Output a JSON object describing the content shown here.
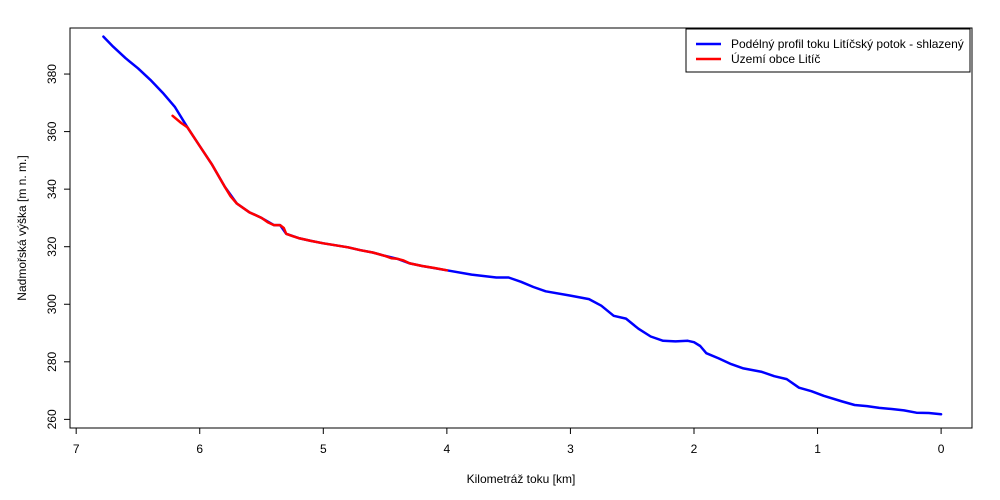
{
  "chart_data": {
    "type": "line",
    "title": "",
    "xlabel": "Kilometráž toku [km]",
    "ylabel": "Nadmořská výška [m n. m.]",
    "xlim": [
      7.05,
      -0.25
    ],
    "x_reversed": true,
    "ylim": [
      257,
      396
    ],
    "x_ticks": [
      7,
      6,
      5,
      4,
      3,
      2,
      1,
      0
    ],
    "y_ticks": [
      260,
      280,
      300,
      320,
      340,
      360,
      380
    ],
    "grid": false,
    "legend_position": "top-right",
    "series": [
      {
        "name": "Podélný profil toku Litíčský potok - shlazený",
        "color": "#0000ff",
        "x": [
          6.78,
          6.7,
          6.6,
          6.5,
          6.4,
          6.3,
          6.2,
          6.1,
          6.0,
          5.9,
          5.8,
          5.7,
          5.6,
          5.5,
          5.4,
          5.35,
          5.3,
          5.2,
          5.1,
          5.0,
          4.9,
          4.8,
          4.7,
          4.6,
          4.5,
          4.4,
          4.3,
          4.2,
          4.0,
          3.8,
          3.6,
          3.5,
          3.4,
          3.3,
          3.2,
          3.0,
          2.85,
          2.75,
          2.65,
          2.55,
          2.45,
          2.35,
          2.25,
          2.15,
          2.05,
          2.0,
          1.95,
          1.9,
          1.8,
          1.7,
          1.6,
          1.45,
          1.35,
          1.25,
          1.15,
          1.05,
          0.95,
          0.8,
          0.7,
          0.6,
          0.5,
          0.4,
          0.3,
          0.2,
          0.1,
          0.0
        ],
        "y": [
          393,
          389.5,
          385.5,
          382,
          378,
          373.5,
          368.5,
          361.5,
          355,
          348.5,
          341,
          335,
          332,
          330,
          327.5,
          327.5,
          324.5,
          323,
          322,
          321.2,
          320.5,
          319.8,
          318.8,
          318,
          316.8,
          315.8,
          314.2,
          313.3,
          311.8,
          310.3,
          309.3,
          309.3,
          307.8,
          306,
          304.5,
          303,
          301.8,
          299.5,
          296,
          295,
          291.5,
          288.8,
          287.3,
          287.1,
          287.3,
          286.8,
          285.5,
          283,
          281.2,
          279.2,
          277.7,
          276.5,
          275,
          274,
          271,
          269.8,
          268.2,
          266.2,
          265,
          264.6,
          264,
          263.6,
          263.1,
          262.3,
          262.2,
          261.8
        ]
      },
      {
        "name": "Území obce Litíč",
        "color": "#ff0000",
        "x": [
          6.22,
          6.15,
          6.1,
          6.0,
          5.9,
          5.8,
          5.75,
          5.7,
          5.6,
          5.5,
          5.45,
          5.4,
          5.35,
          5.32,
          5.3,
          5.25,
          5.2,
          5.1,
          5.0,
          4.9,
          4.8,
          4.7,
          4.6,
          4.5,
          4.45,
          4.4,
          4.35,
          4.3,
          4.2,
          4.1,
          4.0
        ],
        "y": [
          365.5,
          363,
          361.5,
          355,
          348.5,
          341,
          337.5,
          335,
          332,
          330,
          328.5,
          327.5,
          327.5,
          326.5,
          324.5,
          323.7,
          323,
          322,
          321.2,
          320.5,
          319.8,
          318.8,
          318,
          316.8,
          316,
          315.8,
          315.2,
          314.2,
          313.3,
          312.6,
          311.8
        ]
      }
    ]
  }
}
